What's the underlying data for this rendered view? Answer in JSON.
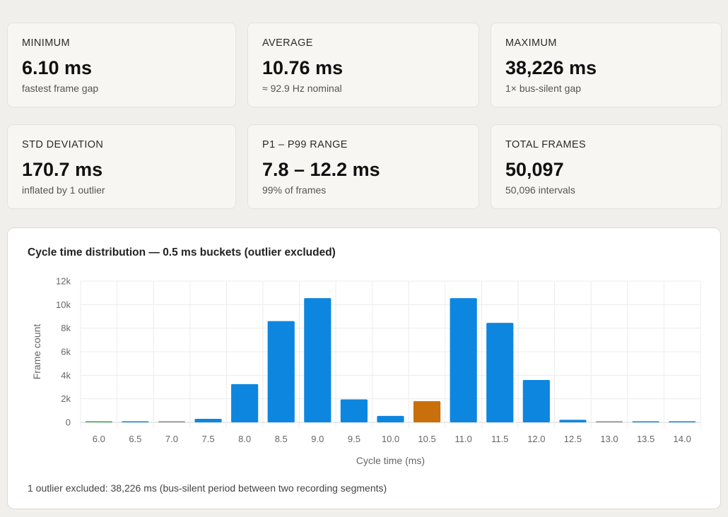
{
  "stats": [
    {
      "label": "MINIMUM",
      "value": "6.10 ms",
      "note": "fastest frame gap"
    },
    {
      "label": "AVERAGE",
      "value": "10.76 ms",
      "note": "≈ 92.9 Hz nominal"
    },
    {
      "label": "MAXIMUM",
      "value": "38,226 ms",
      "note": "1× bus-silent gap"
    },
    {
      "label": "STD DEVIATION",
      "value": "170.7 ms",
      "note": "inflated by 1 outlier"
    },
    {
      "label": "P1 – P99 RANGE",
      "value": "7.8 – 12.2 ms",
      "note": "99% of frames"
    },
    {
      "label": "TOTAL FRAMES",
      "value": "50,097",
      "note": "50,096 intervals"
    }
  ],
  "chart_data": {
    "type": "bar",
    "title": "Cycle time distribution — 0.5 ms buckets (outlier excluded)",
    "xlabel": "Cycle time (ms)",
    "ylabel": "Frame count",
    "categories": [
      "6.0",
      "6.5",
      "7.0",
      "7.5",
      "8.0",
      "8.5",
      "9.0",
      "9.5",
      "10.0",
      "10.5",
      "11.0",
      "11.5",
      "12.0",
      "12.5",
      "13.0",
      "13.5",
      "14.0"
    ],
    "values": [
      10,
      15,
      5,
      300,
      3250,
      8600,
      10550,
      1950,
      550,
      1800,
      10550,
      8450,
      3600,
      220,
      5,
      10,
      10
    ],
    "bar_colors": [
      "#3aa64b",
      "#0d86df",
      "#888888",
      "#0d86df",
      "#0d86df",
      "#0d86df",
      "#0d86df",
      "#0d86df",
      "#0d86df",
      "#c96f0b",
      "#0d86df",
      "#0d86df",
      "#0d86df",
      "#0d86df",
      "#888888",
      "#0d86df",
      "#0d86df"
    ],
    "yticks": [
      0,
      2000,
      4000,
      6000,
      8000,
      10000,
      12000
    ],
    "ytick_labels": [
      "0",
      "2k",
      "4k",
      "6k",
      "8k",
      "10k",
      "12k"
    ],
    "ylim": [
      0,
      12000
    ],
    "grid": true,
    "legend": "none"
  },
  "footnote": "1 outlier excluded: 38,226 ms (bus-silent period between two recording segments)"
}
